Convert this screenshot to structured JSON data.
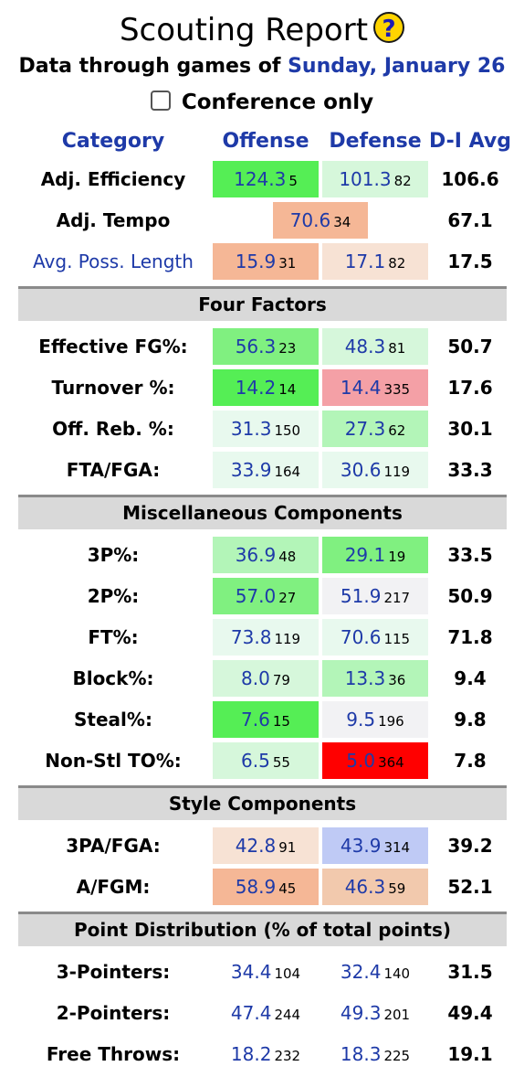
{
  "title": "Scouting Report",
  "help_icon": "?",
  "subtitle_prefix": "Data through games of",
  "subtitle_date": "Sunday, January 26",
  "conference_only": {
    "label": "Conference only",
    "checked": false
  },
  "headers": {
    "category": "Category",
    "offense": "Offense",
    "defense": "Defense",
    "avg": "D-I Avg"
  },
  "summary": [
    {
      "label": "Adj. Efficiency",
      "off": "124.3",
      "off_rank": "5",
      "def": "101.3",
      "def_rank": "82",
      "avg": "106.6"
    },
    {
      "label": "Adj. Tempo",
      "tempo": "70.6",
      "tempo_rank": "34",
      "avg": "67.1"
    },
    {
      "label": "Avg. Poss. Length",
      "off": "15.9",
      "off_rank": "31",
      "def": "17.1",
      "def_rank": "82",
      "avg": "17.5"
    }
  ],
  "sections": {
    "four_factors": "Four Factors",
    "misc": "Miscellaneous Components",
    "style": "Style Components",
    "points": "Point Distribution (% of total points)"
  },
  "four_factors": [
    {
      "label": "Effective FG%:",
      "off": "56.3",
      "off_rank": "23",
      "def": "48.3",
      "def_rank": "81",
      "avg": "50.7"
    },
    {
      "label": "Turnover %:",
      "off": "14.2",
      "off_rank": "14",
      "def": "14.4",
      "def_rank": "335",
      "avg": "17.6"
    },
    {
      "label": "Off. Reb. %:",
      "off": "31.3",
      "off_rank": "150",
      "def": "27.3",
      "def_rank": "62",
      "avg": "30.1"
    },
    {
      "label": "FTA/FGA:",
      "off": "33.9",
      "off_rank": "164",
      "def": "30.6",
      "def_rank": "119",
      "avg": "33.3"
    }
  ],
  "misc": [
    {
      "label": "3P%:",
      "off": "36.9",
      "off_rank": "48",
      "def": "29.1",
      "def_rank": "19",
      "avg": "33.5"
    },
    {
      "label": "2P%:",
      "off": "57.0",
      "off_rank": "27",
      "def": "51.9",
      "def_rank": "217",
      "avg": "50.9"
    },
    {
      "label": "FT%:",
      "off": "73.8",
      "off_rank": "119",
      "def": "70.6",
      "def_rank": "115",
      "avg": "71.8"
    },
    {
      "label": "Block%:",
      "off": "8.0",
      "off_rank": "79",
      "def": "13.3",
      "def_rank": "36",
      "avg": "9.4"
    },
    {
      "label": "Steal%:",
      "off": "7.6",
      "off_rank": "15",
      "def": "9.5",
      "def_rank": "196",
      "avg": "9.8"
    },
    {
      "label": "Non-Stl TO%:",
      "off": "6.5",
      "off_rank": "55",
      "def": "5.0",
      "def_rank": "364",
      "avg": "7.8"
    }
  ],
  "style": [
    {
      "label": "3PA/FGA:",
      "off": "42.8",
      "off_rank": "91",
      "def": "43.9",
      "def_rank": "314",
      "avg": "39.2"
    },
    {
      "label": "A/FGM:",
      "off": "58.9",
      "off_rank": "45",
      "def": "46.3",
      "def_rank": "59",
      "avg": "52.1"
    }
  ],
  "points": [
    {
      "label": "3-Pointers:",
      "off": "34.4",
      "off_rank": "104",
      "def": "32.4",
      "def_rank": "140",
      "avg": "31.5"
    },
    {
      "label": "2-Pointers:",
      "off": "47.4",
      "off_rank": "244",
      "def": "49.3",
      "def_rank": "201",
      "avg": "49.4"
    },
    {
      "label": "Free Throws:",
      "off": "18.2",
      "off_rank": "232",
      "def": "18.3",
      "def_rank": "225",
      "avg": "19.1"
    }
  ],
  "colors": {
    "accent_blue": "#1e3aa8",
    "green_strong": "#55ee55",
    "green_med": "#80f080",
    "green_light": "#b3f5b8",
    "green_pale": "#d6f7db",
    "green_faint": "#e8f9ee",
    "neutral": "#f2f2f4",
    "orange_med": "#f5b796",
    "orange_light": "#f2c9ad",
    "orange_pale": "#f7e2d4",
    "pink": "#f4a0a6",
    "red": "#ff0000",
    "blue_light": "#bfcaf5",
    "section_gray": "#d9d9d9"
  }
}
